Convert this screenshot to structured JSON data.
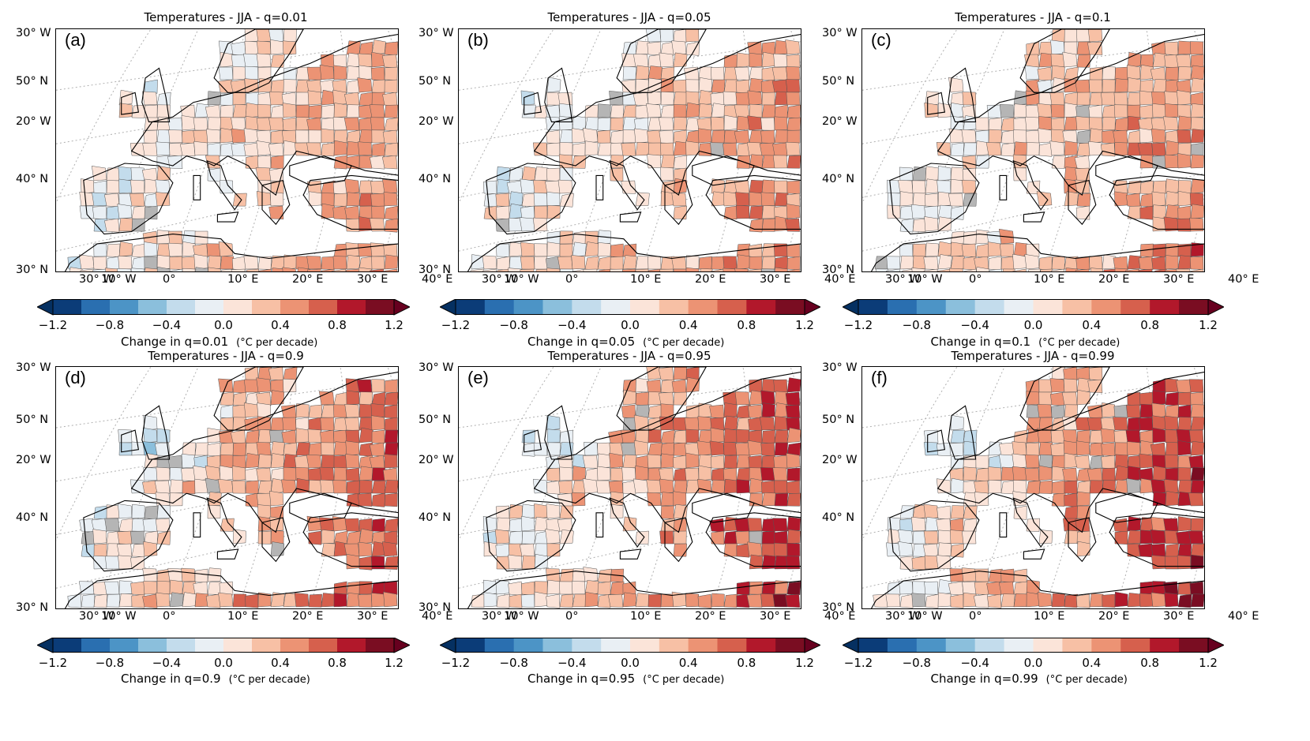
{
  "panels": [
    {
      "title": "Temperatures - JJA - q=0.01",
      "letter": "(a)",
      "cbar_label": "Change in q=0.01",
      "cbar_unit": "(°C per decade)",
      "shift": 0.45
    },
    {
      "title": "Temperatures - JJA - q=0.05",
      "letter": "(b)",
      "cbar_label": "Change in q=0.05",
      "cbar_unit": "(°C per decade)",
      "shift": 0.5
    },
    {
      "title": "Temperatures - JJA - q=0.1",
      "letter": "(c)",
      "cbar_label": "Change in q=0.1",
      "cbar_unit": "(°C per decade)",
      "shift": 0.55
    },
    {
      "title": "Temperatures - JJA - q=0.9",
      "letter": "(d)",
      "cbar_label": "Change in q=0.9",
      "cbar_unit": "(°C per decade)",
      "shift": 0.7
    },
    {
      "title": "Temperatures - JJA - q=0.95",
      "letter": "(e)",
      "cbar_label": "Change in q=0.95",
      "cbar_unit": "(°C per decade)",
      "shift": 0.78
    },
    {
      "title": "Temperatures - JJA - q=0.99",
      "letter": "(f)",
      "cbar_label": "Change in q=0.99",
      "cbar_unit": "(°C per decade)",
      "shift": 0.85
    }
  ],
  "lat_labels": [
    "30° W",
    "50° N",
    "20° W",
    "40° N",
    "30° N"
  ],
  "lon_labels": [
    "30° W",
    "10° W",
    "0°",
    "10° E",
    "20° E",
    "30° E",
    "40° E"
  ],
  "colorbar": {
    "ticks": [
      "−1.2",
      "−0.8",
      "−0.4",
      "0.0",
      "0.4",
      "0.8",
      "1.2"
    ],
    "colors": [
      "#053061",
      "#2166ac",
      "#4393c3",
      "#92c5de",
      "#d1e5f0",
      "#f7f7f7",
      "#fddbc7",
      "#f4a582",
      "#d6604d",
      "#b2182b",
      "#67001f"
    ],
    "bins": [
      "#0b3c78",
      "#2a6fb0",
      "#4c94c6",
      "#8bbfdc",
      "#c3dcec",
      "#e9eff4",
      "#fbe4d9",
      "#f7c0a5",
      "#ec9374",
      "#d6604d",
      "#b2182b",
      "#7a0d22"
    ]
  }
}
